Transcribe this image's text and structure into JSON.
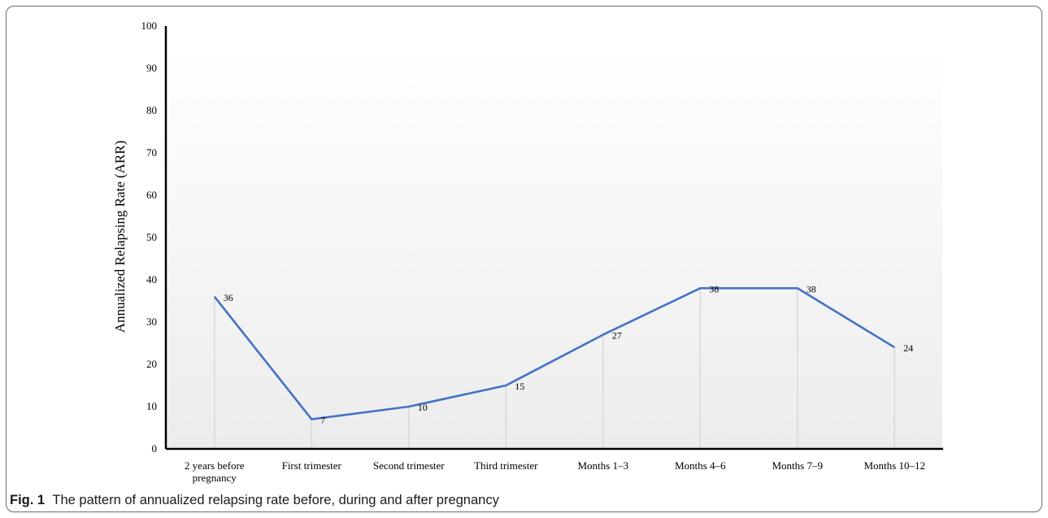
{
  "caption": {
    "label": "Fig. 1",
    "text": "The pattern of annualized relapsing rate before, during and after pregnancy"
  },
  "colors": {
    "line": "#4472c4",
    "axis": "#000000",
    "drop_lines": "#d9d9d9"
  },
  "chart_data": {
    "type": "line",
    "title": "",
    "xlabel": "",
    "ylabel": "Annualized Relapsing Rate (ARR)",
    "ylim": [
      0,
      100
    ],
    "yticks": [
      0,
      10,
      20,
      30,
      40,
      50,
      60,
      70,
      80,
      90,
      100
    ],
    "categories": [
      [
        "2 years before",
        "pregnancy"
      ],
      [
        "First trimester"
      ],
      [
        "Second trimester"
      ],
      [
        "Third trimester"
      ],
      [
        "Months 1–3"
      ],
      [
        "Months 4–6"
      ],
      [
        "Months 7–9"
      ],
      [
        "Months 10–12"
      ]
    ],
    "series": [
      {
        "values": [
          36,
          7,
          10,
          15,
          27,
          38,
          38,
          24
        ]
      }
    ],
    "data_labels": true,
    "drop_lines": true,
    "grid": false,
    "legend": "none"
  }
}
